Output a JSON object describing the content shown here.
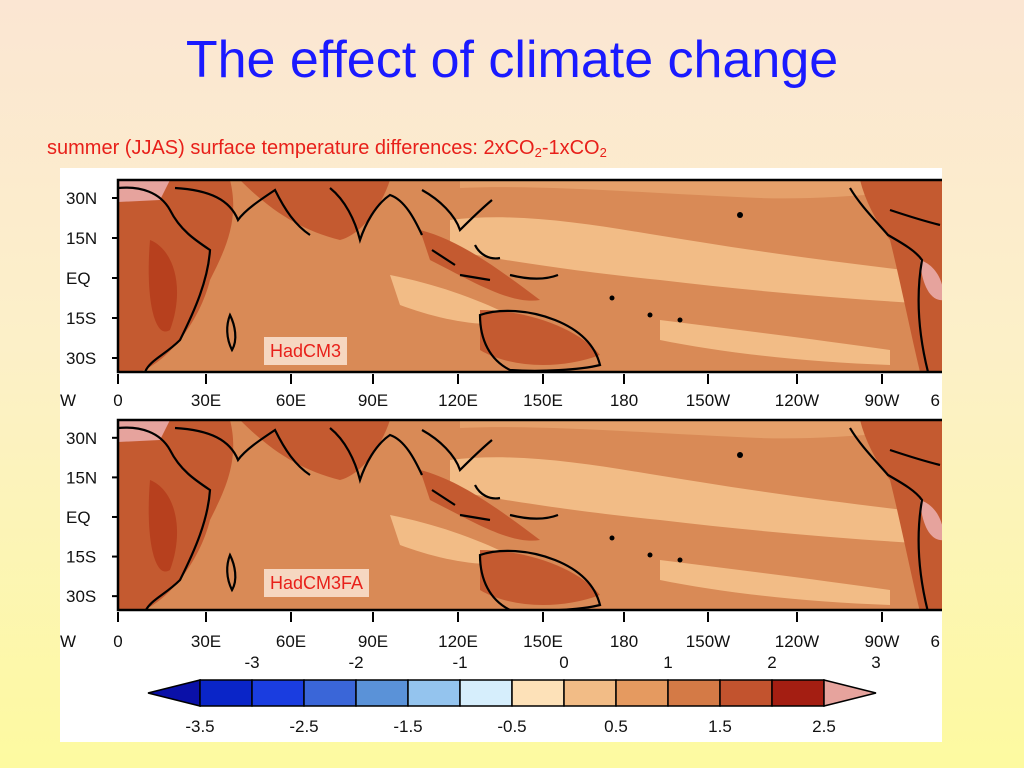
{
  "title": "The effect of climate change",
  "subtitle": {
    "text": "summer (JJAS) surface temperature differences: 2xCO",
    "sub1": "2",
    "mid": "-1xCO",
    "sub2": "2"
  },
  "maps": [
    {
      "label": "HadCM3"
    },
    {
      "label": "HadCM3FA"
    }
  ],
  "lat_labels": [
    "30N",
    "15N",
    "EQ",
    "15S",
    "30S"
  ],
  "lon_labels": [
    "W",
    "0",
    "30E",
    "60E",
    "90E",
    "120E",
    "150E",
    "180",
    "150W",
    "120W",
    "90W",
    "6"
  ],
  "colorbar": {
    "upper_ticks": [
      "-3",
      "-2",
      "-1",
      "0",
      "1",
      "2",
      "3"
    ],
    "lower_ticks": [
      "-3.5",
      "-2.5",
      "-1.5",
      "-0.5",
      "0.5",
      "1.5",
      "2.5"
    ],
    "colors": [
      "#0a10a8",
      "#0a25c8",
      "#1a3de0",
      "#3a66d8",
      "#5a92d8",
      "#94c4ee",
      "#d6eefc",
      "#fde1b8",
      "#f2bc86",
      "#e59a60",
      "#d47a46",
      "#c2532e",
      "#a41e12",
      "#e6a39d"
    ]
  },
  "colors": {
    "title": "#1a1aff",
    "subtitle": "#e8201a",
    "field_base": "#d98a56",
    "field_warm": "#c45a30",
    "field_cool": "#f2bc86",
    "field_hot": "#e6a39d",
    "land_outline": "#000000"
  }
}
